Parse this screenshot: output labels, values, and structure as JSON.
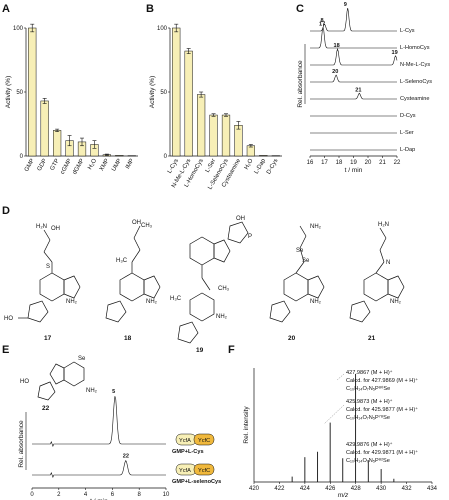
{
  "panels": {
    "A": "A",
    "B": "B",
    "C": "C",
    "D": "D",
    "E": "E",
    "F": "F"
  },
  "chart_data": [
    {
      "panel": "A",
      "type": "bar",
      "ylabel": "Activity (%)",
      "ylim": [
        0,
        100
      ],
      "yticks": [
        "0",
        "50",
        "100"
      ],
      "categories": [
        "GMP",
        "GDP",
        "GTP",
        "cGMP",
        "dGMP",
        "H₂O",
        "XMP",
        "UMP",
        "IMP"
      ],
      "values": [
        100,
        43,
        20,
        12,
        11,
        9,
        1,
        0.5,
        0.3
      ],
      "errors": [
        3,
        2,
        1,
        4,
        3,
        3,
        0.5,
        0,
        0
      ],
      "bar_color": "#f7efb6",
      "bar_stroke": "#111111"
    },
    {
      "panel": "B",
      "type": "bar",
      "ylabel": "Activity (%)",
      "ylim": [
        0,
        100
      ],
      "yticks": [
        "0",
        "50",
        "100"
      ],
      "categories": [
        "L-Cys",
        "N-Me-L-Cys",
        "L-HomoCys",
        "L-Ser",
        "L-SelenoCys",
        "Cysteamine",
        "H₂O",
        "L-Dap",
        "D-Cys"
      ],
      "values": [
        100,
        82,
        48,
        32,
        32,
        24,
        8,
        0.5,
        0.3
      ],
      "errors": [
        3,
        2,
        2,
        1,
        1,
        3,
        1,
        0,
        0
      ],
      "bar_color": "#f7efb6",
      "bar_stroke": "#111111"
    },
    {
      "panel": "C",
      "type": "line",
      "ylabel": "Rel. absorbance",
      "xlabel": "t / min",
      "xlim": [
        16,
        22
      ],
      "xticks": [
        "16",
        "17",
        "18",
        "19",
        "20",
        "21",
        "22"
      ],
      "series": [
        {
          "name": "L-Cys",
          "peaks": [
            {
              "x": 17.0,
              "h": 0.3,
              "label": "8"
            },
            {
              "x": 18.6,
              "h": 1.0,
              "label": "9"
            }
          ]
        },
        {
          "name": "L-HomoCys",
          "peaks": [
            {
              "x": 16.9,
              "h": 0.9,
              "label": "17"
            }
          ]
        },
        {
          "name": "N-Me-L-Cys",
          "peaks": [
            {
              "x": 17.9,
              "h": 0.7,
              "label": "18"
            },
            {
              "x": 21.9,
              "h": 0.4,
              "label": "19"
            }
          ]
        },
        {
          "name": "L-SelenoCys",
          "peaks": [
            {
              "x": 17.8,
              "h": 0.3,
              "label": "20"
            }
          ]
        },
        {
          "name": "Cysteamine",
          "peaks": [
            {
              "x": 19.4,
              "h": 0.25,
              "label": "21"
            }
          ]
        },
        {
          "name": "D-Cys",
          "peaks": []
        },
        {
          "name": "L-Ser",
          "peaks": []
        },
        {
          "name": "L-Dap",
          "peaks": []
        }
      ]
    },
    {
      "panel": "E",
      "type": "line",
      "ylabel": "Rel. absorbance",
      "xlabel": "t / min",
      "xlim": [
        0,
        10
      ],
      "xticks": [
        "0",
        "2",
        "4",
        "6",
        "8",
        "10"
      ],
      "series": [
        {
          "name": "GMP+L-Cys",
          "peaks": [
            {
              "x": 6.2,
              "h": 1.0,
              "label": "5"
            }
          ]
        },
        {
          "name": "GMP+L-selenoCys",
          "peaks": [
            {
              "x": 7.0,
              "h": 0.3,
              "label": "22"
            }
          ]
        }
      ],
      "enzymes": {
        "a": "YcfA",
        "b": "YcfC"
      }
    },
    {
      "panel": "F",
      "type": "bar",
      "ylabel": "Rel. intensity",
      "xlabel": "m/z",
      "xlim": [
        420,
        434
      ],
      "xticks": [
        "420",
        "422",
        "424",
        "426",
        "428",
        "430",
        "432",
        "434"
      ],
      "x": [
        423.0,
        424.0,
        425.0,
        425.99,
        426.98,
        427.99,
        428.99,
        430.0,
        431.0
      ],
      "values": [
        0.05,
        0.23,
        0.28,
        0.55,
        0.22,
        1.0,
        0.2,
        0.12,
        0.03
      ]
    }
  ],
  "ms_annotations": {
    "a1": "427.9867 (M + H)⁺",
    "a2": "Calcd. for 427.9869 (M + H)⁺",
    "a3": "C₁₀H₁₄O₇N₅P⁸⁰Se",
    "b1": "425.9873 (M + H)⁺",
    "b2": "Calcd. for 425.9877 (M + H)⁺",
    "b3": "C₁₀H₁₄O₇N₅P⁷⁸Se",
    "c1": "429.9876 (M + H)⁺",
    "c2": "Calcd. for 429.9871 (M + H)⁺",
    "c3": "C₁₀H₁₄O₇N₅P⁸²Se"
  },
  "compounds": {
    "c17": "17",
    "c18": "18",
    "c19": "19",
    "c20": "20",
    "c21": "21",
    "c22": "22"
  },
  "chem": {
    "se": "Se",
    "nh2": "NH₂",
    "h2n": "H₂N",
    "oh": "OH",
    "o": "O",
    "s": "S",
    "ho": "HO",
    "p": "P",
    "n": "N",
    "ch3": "CH₃",
    "h3c": "H₃C",
    "ho_p": "HO–P"
  },
  "colors": {
    "bar_fill": "#f7efb6",
    "enzyme_a": "#f7efb6",
    "enzyme_b": "#f0b83c",
    "ms_line": "#111111"
  }
}
